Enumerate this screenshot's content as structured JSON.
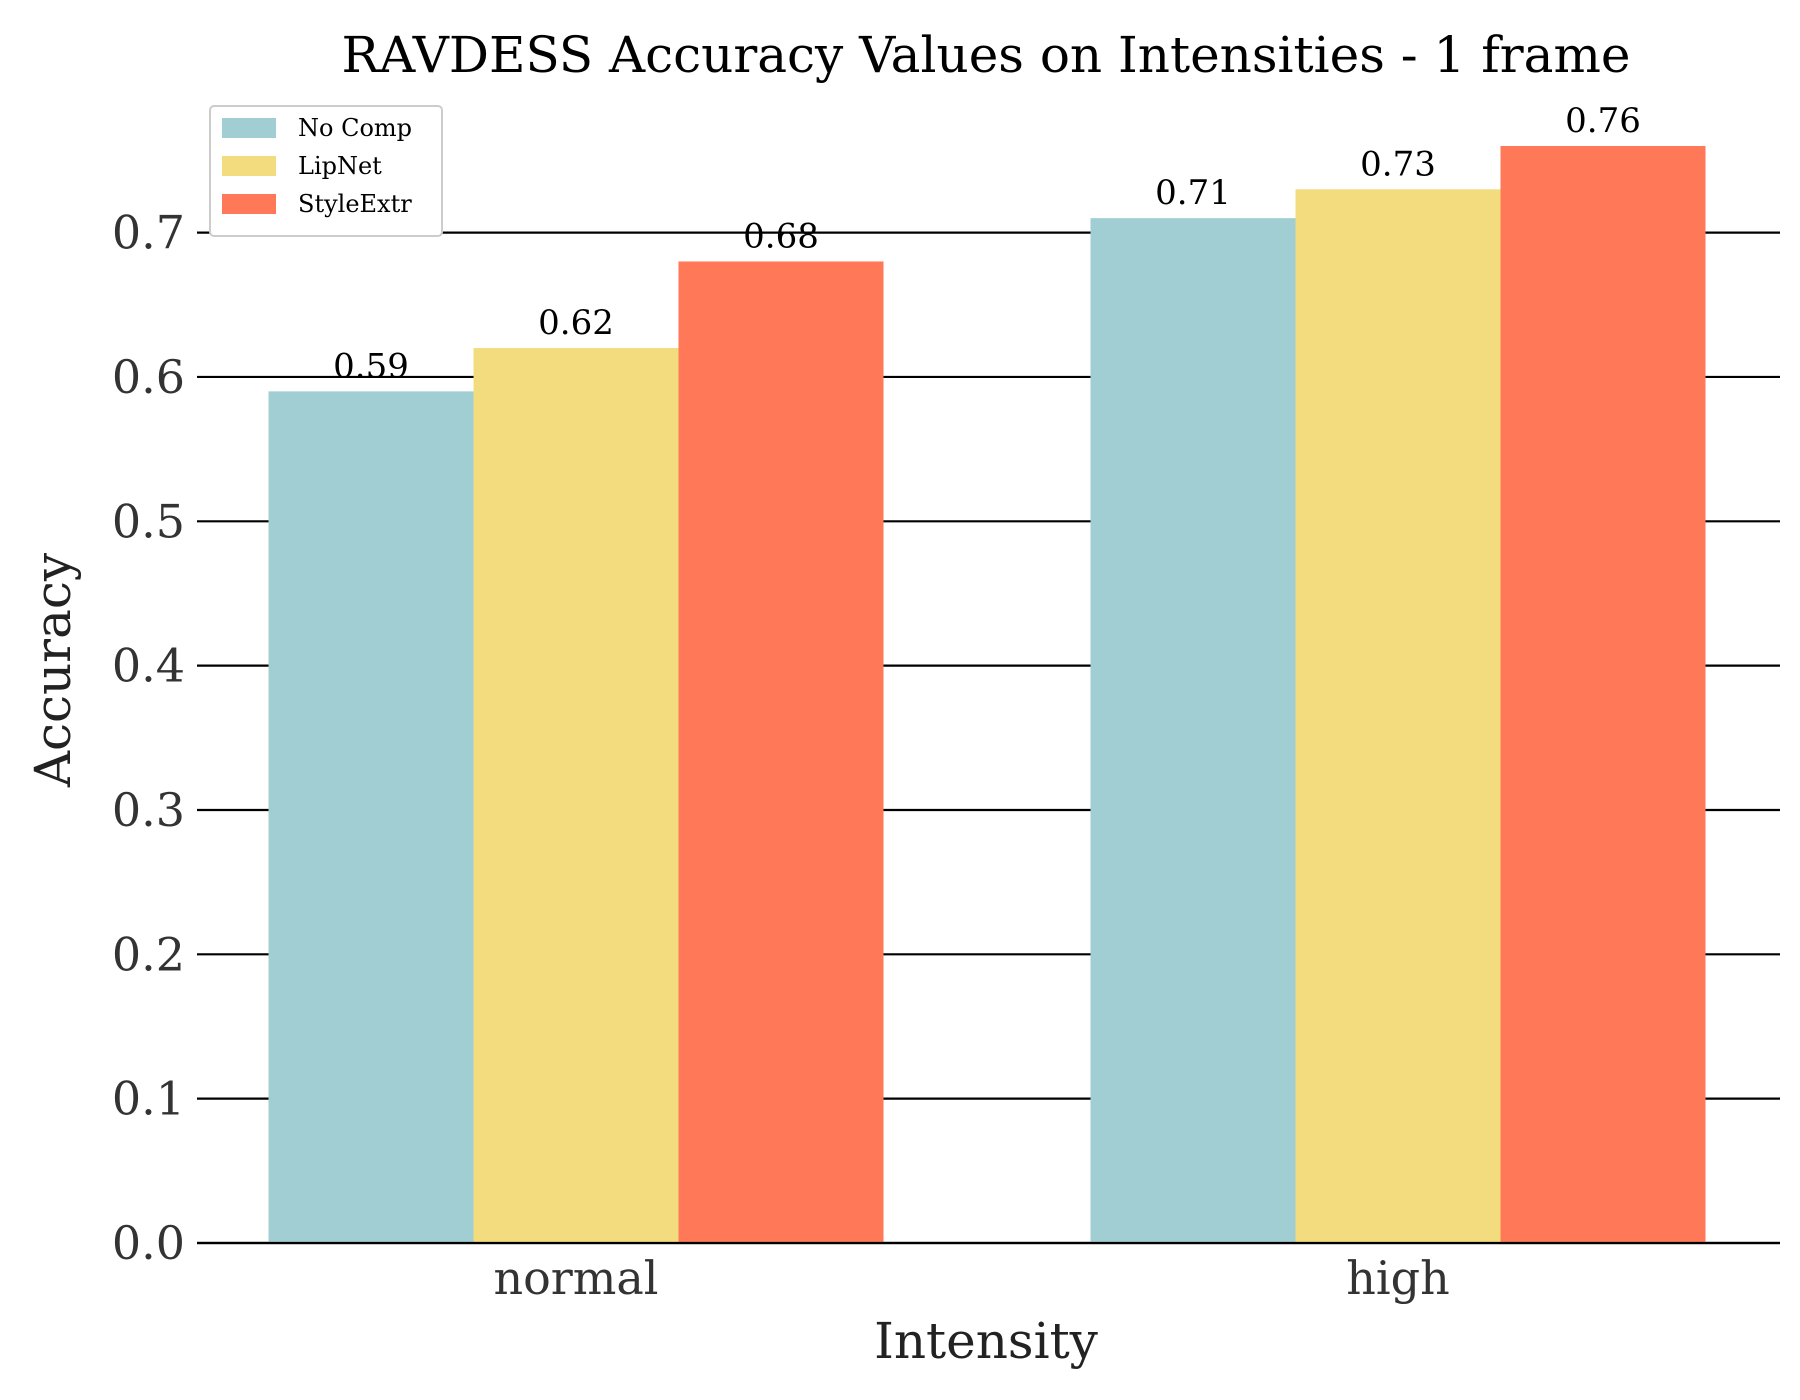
{
  "chart_data": {
    "type": "bar",
    "title": "RAVDESS Accuracy Values on Intensities - 1 frame",
    "xlabel": "Intensity",
    "ylabel": "Accuracy",
    "categories": [
      "normal",
      "high"
    ],
    "series": [
      {
        "name": "No Comp",
        "color": "#a0ced3",
        "values": [
          0.59,
          0.71
        ]
      },
      {
        "name": "LipNet",
        "color": "#f2dc7d",
        "values": [
          0.62,
          0.73
        ]
      },
      {
        "name": "StyleExtr",
        "color": "#ff7959",
        "values": [
          0.68,
          0.76
        ]
      }
    ],
    "data_labels": [
      [
        "0.59",
        "0.71"
      ],
      [
        "0.62",
        "0.73"
      ],
      [
        "0.68",
        "0.76"
      ]
    ],
    "ylim": [
      0.0,
      0.76
    ],
    "yticks": [
      0.0,
      0.1,
      0.2,
      0.3,
      0.4,
      0.5,
      0.6,
      0.7
    ],
    "ytick_labels": [
      "0.0",
      "0.1",
      "0.2",
      "0.3",
      "0.4",
      "0.5",
      "0.6",
      "0.7"
    ],
    "grid": "horizontal",
    "legend_position": "top-left"
  }
}
